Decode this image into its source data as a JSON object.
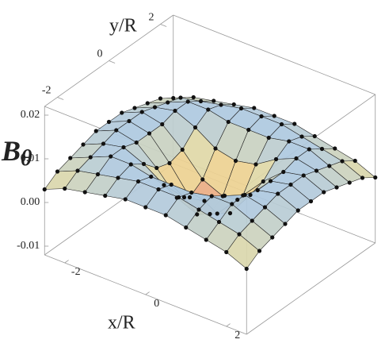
{
  "chart_data": {
    "type": "surface3d",
    "xlabel": "x/R",
    "ylabel": "y/R",
    "zlabel": {
      "main": "B",
      "sub": "θ"
    },
    "xlim": [
      -2.5,
      2.5
    ],
    "ylim": [
      -2.5,
      2.5
    ],
    "zlim": [
      -0.012,
      0.022
    ],
    "xticks": [
      -2,
      0,
      2
    ],
    "yticks": [
      -2,
      0,
      2
    ],
    "zticks": [
      -0.01,
      {
        "value": 0,
        "label": "0.00"
      },
      0.01,
      0.02
    ],
    "x": [
      -2.5,
      -2,
      -1.5,
      -1,
      -0.5,
      0,
      0.5,
      1,
      1.5,
      2,
      2.5
    ],
    "y": [
      -2.5,
      -2,
      -1.5,
      -1,
      -0.5,
      0,
      0.5,
      1,
      1.5,
      2,
      2.5
    ],
    "z": [
      [
        0.003,
        0.005,
        0.006,
        0.007,
        0.008,
        0.008,
        0.008,
        0.007,
        0.006,
        0.005,
        0.003
      ],
      [
        0.005,
        0.007,
        0.008,
        0.009,
        0.01,
        0.01,
        0.01,
        0.009,
        0.008,
        0.007,
        0.005
      ],
      [
        0.006,
        0.008,
        0.01,
        0.01,
        0.009,
        0.009,
        0.009,
        0.01,
        0.01,
        0.008,
        0.006
      ],
      [
        0.007,
        0.009,
        0.01,
        0.008,
        0.005,
        0.004,
        0.005,
        0.008,
        0.01,
        0.009,
        0.007
      ],
      [
        0.008,
        0.01,
        0.009,
        0.005,
        0.0,
        -0.002,
        0.0,
        0.005,
        0.009,
        0.01,
        0.008
      ],
      [
        0.008,
        0.01,
        0.009,
        0.004,
        -0.002,
        -0.004,
        -0.002,
        0.004,
        0.009,
        0.01,
        0.008
      ],
      [
        0.008,
        0.01,
        0.009,
        0.005,
        0.0,
        -0.002,
        0.0,
        0.005,
        0.009,
        0.01,
        0.008
      ],
      [
        0.007,
        0.009,
        0.01,
        0.008,
        0.005,
        0.004,
        0.005,
        0.008,
        0.01,
        0.009,
        0.007
      ],
      [
        0.006,
        0.008,
        0.01,
        0.01,
        0.009,
        0.009,
        0.009,
        0.01,
        0.01,
        0.008,
        0.006
      ],
      [
        0.005,
        0.007,
        0.008,
        0.009,
        0.01,
        0.01,
        0.01,
        0.009,
        0.008,
        0.007,
        0.005
      ],
      [
        0.003,
        0.005,
        0.006,
        0.007,
        0.008,
        0.008,
        0.008,
        0.007,
        0.006,
        0.005,
        0.003
      ]
    ],
    "colormap": [
      "#e99a7c",
      "#eedd96",
      "#a9c7e6"
    ]
  }
}
